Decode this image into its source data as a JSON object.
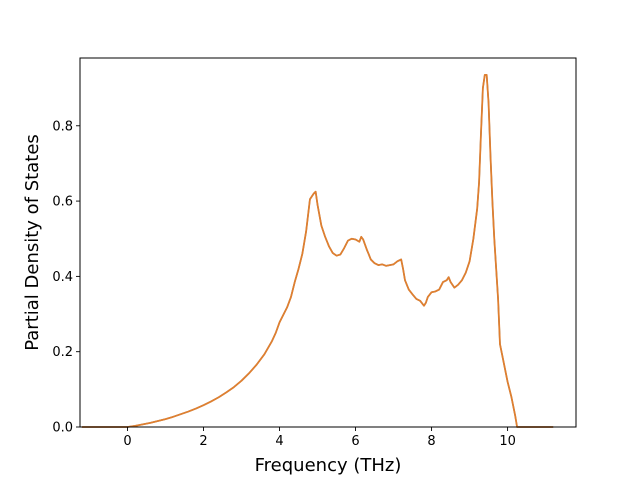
{
  "chart_data": {
    "type": "line",
    "title": "",
    "xlabel": "Frequency (THz)",
    "ylabel": "Partial Density of States",
    "xlim": [
      -1.25,
      11.8
    ],
    "ylim": [
      0.0,
      0.98
    ],
    "xticks": [
      0,
      2,
      4,
      6,
      8,
      10
    ],
    "yticks": [
      0.0,
      0.2,
      0.4,
      0.6,
      0.8
    ],
    "xtick_labels": [
      "0",
      "2",
      "4",
      "6",
      "8",
      "10"
    ],
    "ytick_labels": [
      "0.0",
      "0.2",
      "0.4",
      "0.6",
      "0.8"
    ],
    "grid": false,
    "legend": "none",
    "series": [
      {
        "color": "#e07f2f",
        "overlay_color": "#1f77b4",
        "x": [
          -1.2,
          -0.8,
          -0.4,
          0.0,
          0.2,
          0.4,
          0.6,
          0.8,
          1.0,
          1.2,
          1.4,
          1.6,
          1.8,
          2.0,
          2.2,
          2.4,
          2.6,
          2.8,
          3.0,
          3.2,
          3.4,
          3.6,
          3.8,
          3.9,
          4.0,
          4.2,
          4.3,
          4.4,
          4.5,
          4.6,
          4.65,
          4.7,
          4.8,
          4.9,
          4.95,
          5.0,
          5.1,
          5.2,
          5.3,
          5.4,
          5.5,
          5.6,
          5.7,
          5.8,
          5.9,
          6.0,
          6.1,
          6.15,
          6.2,
          6.3,
          6.35,
          6.4,
          6.5,
          6.6,
          6.7,
          6.8,
          6.9,
          7.0,
          7.1,
          7.2,
          7.25,
          7.3,
          7.4,
          7.5,
          7.6,
          7.7,
          7.8,
          7.85,
          7.9,
          8.0,
          8.1,
          8.2,
          8.3,
          8.4,
          8.45,
          8.5,
          8.6,
          8.7,
          8.8,
          8.9,
          9.0,
          9.1,
          9.2,
          9.25,
          9.3,
          9.35,
          9.4,
          9.45,
          9.5,
          9.55,
          9.6,
          9.65,
          9.7,
          9.75,
          9.8,
          9.85,
          9.9,
          10.0,
          10.1,
          10.2,
          10.25,
          10.3,
          10.4,
          10.6,
          10.8,
          11.0,
          11.2
        ],
        "y": [
          0.0,
          0.0,
          0.0,
          0.0,
          0.003,
          0.007,
          0.011,
          0.016,
          0.021,
          0.027,
          0.034,
          0.041,
          0.049,
          0.058,
          0.068,
          0.079,
          0.092,
          0.106,
          0.123,
          0.143,
          0.166,
          0.193,
          0.228,
          0.25,
          0.278,
          0.318,
          0.345,
          0.385,
          0.42,
          0.46,
          0.49,
          0.52,
          0.605,
          0.62,
          0.625,
          0.59,
          0.535,
          0.505,
          0.48,
          0.462,
          0.455,
          0.458,
          0.475,
          0.495,
          0.5,
          0.498,
          0.492,
          0.505,
          0.498,
          0.47,
          0.458,
          0.445,
          0.435,
          0.43,
          0.432,
          0.428,
          0.43,
          0.432,
          0.44,
          0.445,
          0.42,
          0.39,
          0.365,
          0.352,
          0.34,
          0.335,
          0.322,
          0.33,
          0.345,
          0.358,
          0.36,
          0.365,
          0.385,
          0.39,
          0.398,
          0.385,
          0.37,
          0.378,
          0.39,
          0.41,
          0.44,
          0.5,
          0.58,
          0.65,
          0.78,
          0.9,
          0.935,
          0.935,
          0.86,
          0.72,
          0.6,
          0.5,
          0.42,
          0.34,
          0.22,
          0.195,
          0.17,
          0.12,
          0.08,
          0.03,
          0.0,
          0.0,
          0.0,
          0.0,
          0.0,
          0.0,
          0.0
        ]
      }
    ]
  }
}
